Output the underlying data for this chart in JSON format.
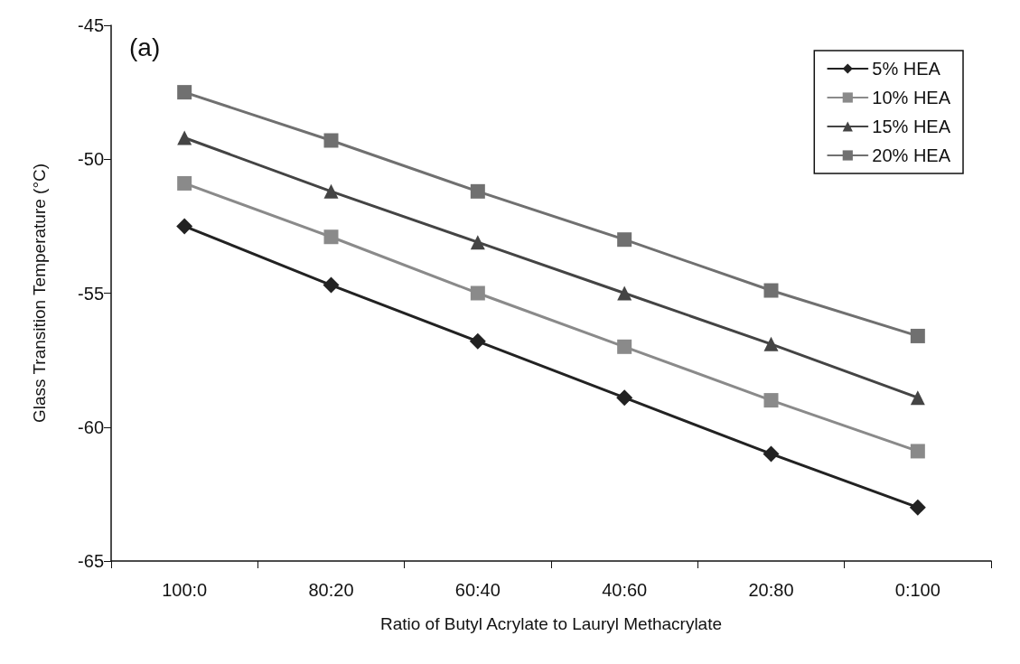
{
  "chart_data": {
    "type": "line",
    "xlabel": "Ratio of Butyl Acrylate to Lauryl Methacrylate",
    "ylabel": "Glass Transition Temperature (°C)",
    "annotations": [
      "(a)"
    ],
    "categories": [
      "100:0",
      "80:20",
      "60:40",
      "40:60",
      "20:80",
      "0:100"
    ],
    "series": [
      {
        "name": "5% HEA",
        "color": "#222222",
        "marker": "diamond",
        "values": [
          -52.5,
          -54.7,
          -56.8,
          -58.9,
          -61.0,
          -63.0
        ]
      },
      {
        "name": "10% HEA",
        "color": "#8a8a8a",
        "marker": "square",
        "values": [
          -50.9,
          -52.9,
          -55.0,
          -57.0,
          -59.0,
          -60.9
        ]
      },
      {
        "name": "15% HEA",
        "color": "#444444",
        "marker": "triangle",
        "values": [
          -49.2,
          -51.2,
          -53.1,
          -55.0,
          -56.9,
          -58.9
        ]
      },
      {
        "name": "20% HEA",
        "color": "#707070",
        "marker": "square",
        "values": [
          -47.5,
          -49.3,
          -51.2,
          -53.0,
          -54.9,
          -56.6
        ]
      }
    ],
    "ylim": [
      -65,
      -45
    ],
    "yticks": [
      -65,
      -60,
      -55,
      -50,
      -45
    ],
    "grid": false,
    "legend": "top right",
    "line_style": "solid"
  }
}
